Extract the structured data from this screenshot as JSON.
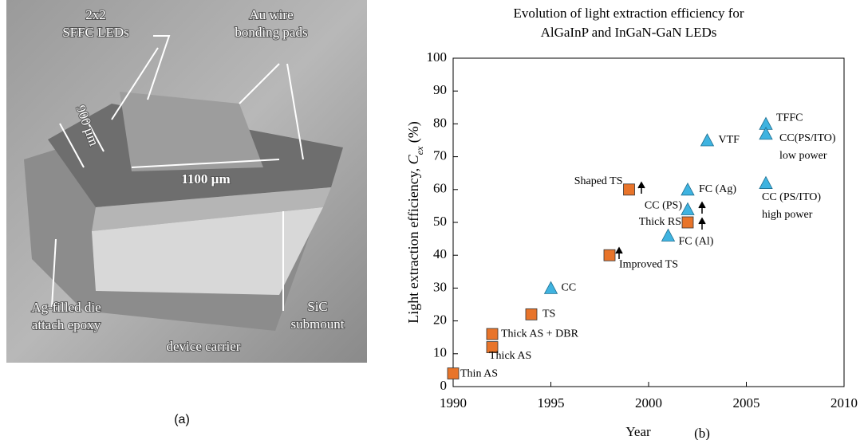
{
  "photo": {
    "labels": [
      [
        "2x2",
        "SFFC LEDs"
      ],
      [
        "Au wire",
        "bonding pads"
      ],
      [
        "900 µm"
      ],
      [
        "1100 µm"
      ],
      [
        "Ag-filled die",
        "attach epoxy"
      ],
      [
        "SiC",
        "submount"
      ],
      [
        "device carrier"
      ]
    ],
    "caption": "(a)"
  },
  "chart_data": {
    "type": "scatter",
    "title": [
      "Evolution of light extraction efficiency for",
      "AlGaInP and InGaN-GaN LEDs"
    ],
    "xlabel": "Year",
    "ylabel": [
      "Light extraction efficiency, ",
      "C",
      "ex",
      " (%)"
    ],
    "panel_label": "(b)",
    "xlim": [
      1990,
      2010
    ],
    "xticks": [
      1990,
      1995,
      2000,
      2005,
      2010
    ],
    "ylim": [
      0,
      100
    ],
    "yticks": [
      0,
      10,
      20,
      30,
      40,
      50,
      60,
      70,
      80,
      90,
      100
    ],
    "series": [
      {
        "color": "#e8742a",
        "marker": "square",
        "x": [
          1990,
          1992,
          1992,
          1994,
          1998,
          1999,
          2002
        ],
        "values": [
          4,
          12,
          16,
          22,
          40,
          60,
          50
        ],
        "labels": [
          [
            "Thin AS"
          ],
          [
            "Thick AS"
          ],
          [
            "Thick AS + DBR"
          ],
          [
            "TS"
          ],
          [
            "Improved TS"
          ],
          [
            "Shaped TS"
          ],
          [
            "Thick RS"
          ]
        ]
      },
      {
        "color": "#3fb3e0",
        "marker": "triangle",
        "x": [
          1995,
          2001,
          2002,
          2002,
          2003,
          2006,
          2006,
          2006
        ],
        "values": [
          30,
          46,
          54,
          60,
          75,
          80,
          77,
          62
        ],
        "labels": [
          [
            "CC"
          ],
          [
            "FC (Al)"
          ],
          [
            "CC (PS)"
          ],
          [
            "FC (Ag)"
          ],
          [
            "VTF"
          ],
          [
            "TFFC"
          ],
          [
            "CC(PS/ITO)",
            "low power"
          ],
          [
            "CC (PS/ITO)",
            "high power"
          ]
        ]
      }
    ]
  }
}
